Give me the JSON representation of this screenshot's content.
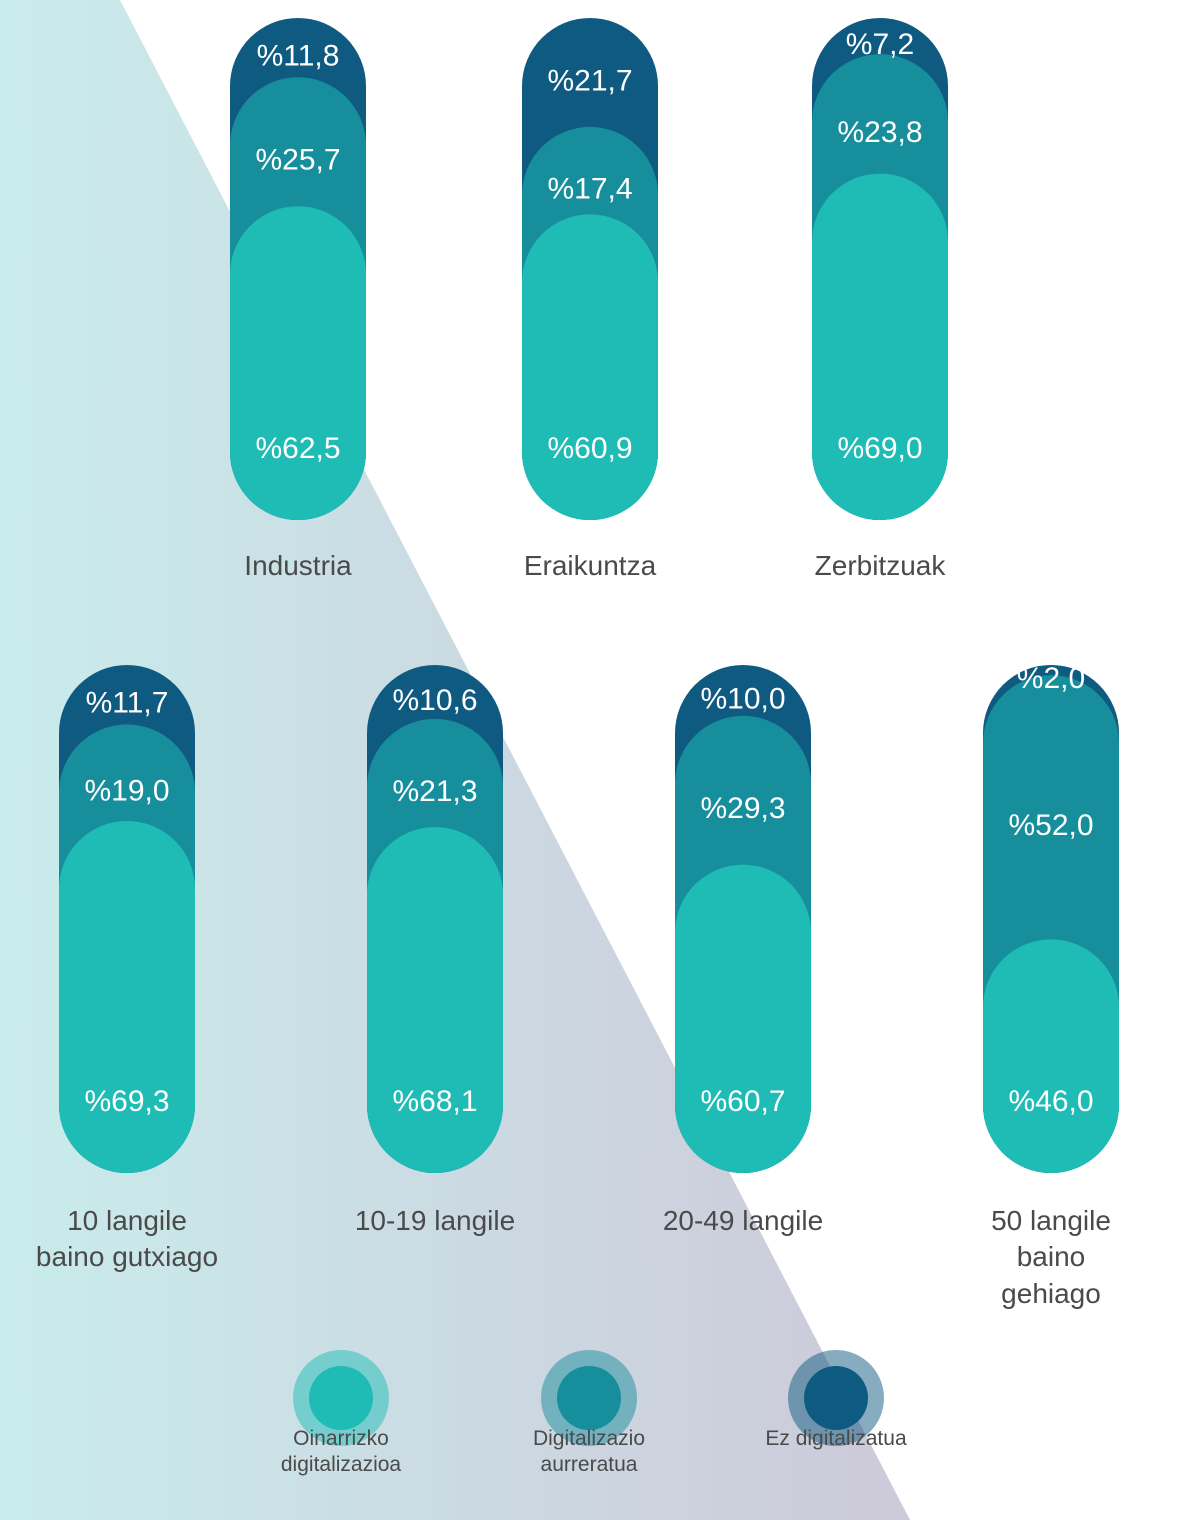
{
  "chart_data": [
    {
      "type": "bar",
      "stacked": true,
      "categories": [
        "Industria",
        "Eraikuntza",
        "Zerbitzuak"
      ],
      "series": [
        {
          "name": "Oinarrizko\ndigitalizazioa",
          "color": "#1fbcb5",
          "values": [
            62.5,
            60.9,
            69.0
          ],
          "value_labels": [
            "%62,5",
            "%60,9",
            "%69,0"
          ]
        },
        {
          "name": "Digitalizazio\naurreratua",
          "color": "#178e9c",
          "values": [
            25.7,
            17.4,
            23.8
          ],
          "value_labels": [
            "%25,7",
            "%17,4",
            "%23,8"
          ]
        },
        {
          "name": "Ez digitalizatua",
          "color": "#0f5a80",
          "values": [
            11.8,
            21.7,
            7.2
          ],
          "value_labels": [
            "%11,8",
            "%21,7",
            "%7,2"
          ]
        }
      ]
    },
    {
      "type": "bar",
      "stacked": true,
      "categories": [
        "10 langile\nbaino gutxiago",
        "10-19 langile",
        "20-49 langile",
        "50 langile\nbaino gehiago"
      ],
      "series": [
        {
          "color": "#1fbcb5",
          "values": [
            69.3,
            68.1,
            60.7,
            46.0
          ],
          "value_labels": [
            "%69,3",
            "%68,1",
            "%60,7",
            "%46,0"
          ]
        },
        {
          "color": "#178e9c",
          "values": [
            19.0,
            21.3,
            29.3,
            52.0
          ],
          "value_labels": [
            "%19,0",
            "%21,3",
            "%29,3",
            "%52,0"
          ]
        },
        {
          "color": "#0f5a80",
          "values": [
            11.7,
            10.6,
            10.0,
            2.0
          ],
          "value_labels": [
            "%11,7",
            "%10,6",
            "%10,0",
            "%2,0"
          ]
        }
      ]
    }
  ]
}
